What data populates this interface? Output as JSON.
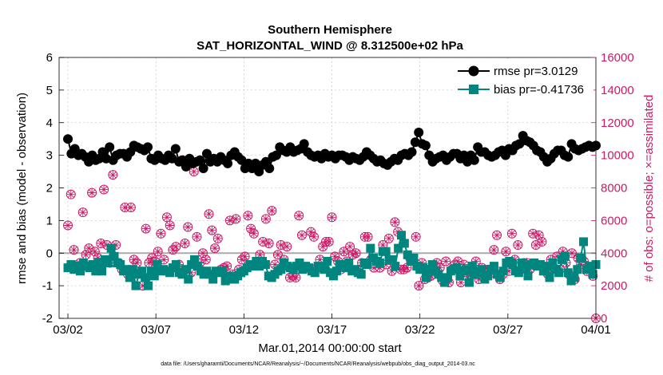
{
  "chart_data": {
    "type": "line",
    "title": "Southern Hemisphere",
    "subtitle": "SAT_HORIZONTAL_WIND @ 8.312500e+02 hPa",
    "xlabel": "Mar.01,2014 00:00:00 start",
    "ylabel": "rmse and bias (model - observation)",
    "y2label": "# of obs: o=possible; ×=assimilated",
    "footnote": "data file: /Users/gharamti/Documents/NCAR/Reanalysis/~/Documents/NCAR/Reanalysis/webpub/obs_diag_output_2014-03.nc",
    "xlim": [
      1.5,
      32
    ],
    "ylim": [
      -2,
      6
    ],
    "y2lim": [
      0,
      16000
    ],
    "xticks": [
      2,
      7,
      12,
      17,
      22,
      27,
      32
    ],
    "xtick_labels": [
      "03/02",
      "03/07",
      "03/12",
      "03/17",
      "03/22",
      "03/27",
      "04/01"
    ],
    "yticks": [
      -2,
      -1,
      0,
      1,
      2,
      3,
      4,
      5,
      6
    ],
    "yticks_right": [
      0,
      2000,
      4000,
      6000,
      8000,
      10000,
      12000,
      14000,
      16000
    ],
    "grid": true,
    "legend_position": "top-right",
    "series": [
      {
        "name": "rmse pr=3.0129",
        "axis": "left",
        "color": "#000000",
        "marker": "circle",
        "values": [
          3.5,
          3.05,
          3.2,
          3.0,
          3.05,
          2.95,
          2.8,
          3.0,
          2.85,
          2.9,
          3.1,
          2.9,
          3.25,
          2.85,
          3.0,
          3.05,
          3.05,
          2.95,
          3.1,
          3.3,
          3.25,
          3.2,
          3.15,
          3.25,
          2.9,
          2.85,
          3.0,
          2.9,
          2.85,
          3.0,
          2.9,
          3.2,
          2.8,
          2.85,
          2.65,
          2.9,
          2.75,
          2.8,
          2.85,
          2.6,
          3.05,
          2.8,
          2.9,
          2.8,
          2.95,
          2.85,
          2.75,
          3.0,
          3.1,
          2.95,
          2.85,
          2.6,
          2.75,
          2.6,
          2.75,
          2.5,
          2.7,
          2.8,
          2.6,
          2.95,
          3.0,
          3.25,
          3.15,
          3.1,
          3.25,
          3.1,
          3.15,
          3.2,
          3.35,
          3.1,
          3.0,
          2.95,
          3.0,
          2.9,
          3.05,
          2.95,
          3.0,
          2.9,
          3.0,
          3.0,
          2.95,
          2.85,
          2.95,
          2.9,
          2.85,
          2.95,
          3.1,
          3.0,
          2.9,
          2.8,
          2.85,
          2.75,
          2.7,
          2.8,
          2.9,
          2.85,
          3.0,
          3.05,
          3.0,
          3.1,
          3.4,
          3.7,
          3.35,
          3.3,
          3.0,
          2.8,
          2.9,
          2.95,
          3.0,
          2.85,
          2.95,
          3.05,
          3.05,
          2.9,
          3.0,
          2.8,
          3.0,
          2.85,
          3.25,
          3.1,
          3.1,
          3.0,
          2.95,
          3.0,
          3.1,
          3.15,
          3.0,
          3.2,
          3.15,
          3.3,
          3.35,
          3.6,
          3.45,
          3.4,
          3.3,
          3.15,
          3.1,
          2.95,
          2.8,
          2.9,
          3.05,
          3.15,
          3.15,
          3.0,
          2.95,
          3.35,
          3.2,
          3.15,
          3.2,
          3.25,
          3.3,
          3.25,
          3.3
        ]
      },
      {
        "name": "bias pr=-0.41736",
        "axis": "left",
        "color": "#00857F",
        "marker": "square",
        "values": [
          -0.45,
          -0.35,
          -0.5,
          -0.4,
          -0.55,
          -0.3,
          -0.4,
          -0.45,
          -0.35,
          -0.55,
          -0.3,
          -0.55,
          -0.2,
          -0.3,
          0.15,
          -0.1,
          -0.3,
          -0.35,
          -0.55,
          -0.5,
          -0.75,
          -0.5,
          -1.0,
          -0.65,
          -0.55,
          -0.75,
          -1.0,
          -0.55,
          -0.7,
          -0.35,
          -0.55,
          -0.5,
          -0.55,
          -0.6,
          -0.45,
          -0.35,
          -0.6,
          -0.65,
          -0.5,
          -0.8,
          -0.35,
          -0.2,
          -0.4,
          -0.55,
          -0.65,
          -0.55,
          -0.65,
          -0.8,
          -0.55,
          -0.6,
          -0.55,
          -0.85,
          -0.7,
          -0.8,
          -0.8,
          -0.7,
          -0.6,
          -0.55,
          -0.45,
          -0.35,
          -0.4,
          -0.25,
          -0.4,
          -0.25,
          -0.35,
          -0.7,
          -0.75,
          -0.65,
          -0.55,
          -0.5,
          -0.3,
          -0.4,
          -0.45,
          -0.5,
          -0.4,
          -0.3,
          -0.5,
          -0.4,
          -0.45,
          -0.55,
          -0.6,
          -0.4,
          -0.45,
          -0.5,
          -0.25,
          -0.6,
          -0.7,
          -0.55,
          -0.35,
          -0.35,
          -0.45,
          -0.3,
          -0.55,
          -0.5,
          -0.6,
          -0.65,
          -0.3,
          -0.35,
          0.15,
          -0.15,
          -0.25,
          -0.3,
          0.05,
          0.05,
          -0.2,
          -0.2,
          -0.4,
          0.15,
          0.55,
          0.3,
          -0.05,
          -0.25,
          -0.15,
          -0.4,
          -0.5,
          -0.45,
          -0.75,
          -0.5,
          -0.35,
          -0.55,
          -0.65,
          -0.75,
          -0.9,
          -0.75,
          -0.55,
          -0.5,
          -0.45,
          -0.7,
          -0.55,
          -0.5,
          -0.9,
          -0.4,
          -0.65,
          -0.6,
          -0.5,
          -0.8,
          -0.7,
          -0.5,
          -0.4,
          -0.65,
          -0.75,
          -0.55,
          -0.3,
          -0.25,
          -0.35,
          -0.55,
          -0.6,
          -0.3,
          -0.45,
          -0.7,
          -0.35,
          -0.3,
          -0.4,
          -0.35,
          -0.55,
          -0.4,
          -0.75,
          -0.3,
          -0.5,
          -0.6,
          -0.2,
          -0.1,
          -0.6,
          -0.85,
          -0.75,
          -0.5,
          -0.15,
          0.35,
          -0.5,
          -0.4,
          -0.65,
          -0.35
        ]
      },
      {
        "name": "possible",
        "axis": "right",
        "color": "#CC1A66",
        "marker": "circle-open",
        "values": [
          5700,
          7600,
          4200,
          3200,
          3400,
          6500,
          3900,
          4300,
          7700,
          4100,
          3700,
          4600,
          7900,
          4500,
          3400,
          8800,
          4500,
          3400,
          3000,
          6800,
          2700,
          6800,
          3600,
          3400,
          2800,
          2000,
          5500,
          3400,
          3700,
          3500,
          4100,
          5200,
          3600,
          6200,
          5700,
          4200,
          4400,
          3300,
          9700,
          4600,
          5600,
          2800,
          9000,
          5000,
          3400,
          4000,
          3600,
          6400,
          5400,
          4300,
          4900,
          3000,
          3100,
          3200,
          6000,
          2700,
          6100,
          3000,
          3600,
          3800,
          6300,
          5500,
          5200,
          3300,
          3900,
          4700,
          6100,
          4600,
          6600,
          3300,
          3900,
          4500,
          3600,
          4400,
          2500,
          2600,
          2500,
          6300,
          5100,
          3100,
          3100,
          5300,
          5000,
          3100,
          3600,
          4400,
          4700,
          4700,
          6200,
          3800,
          3500,
          3000,
          4100,
          3500,
          4400,
          3900,
          4000,
          3000,
          3400,
          5000,
          5000,
          3600,
          3100,
          3500,
          3100,
          4500,
          3300,
          4900,
          2900,
          5900,
          5300,
          3000,
          3000,
          3100,
          3700,
          3600,
          5000,
          2000,
          3400,
          2400,
          2500,
          2600,
          3000,
          3400,
          3100,
          2300,
          3500,
          2200,
          3000,
          3300,
          3500,
          2200,
          3300,
          2800,
          2700,
          3000,
          3500,
          2400,
          3100,
          2800,
          3000,
          2800,
          4200,
          5100,
          2400,
          2700,
          4100,
          2900,
          5200,
          3600,
          4500,
          3000,
          3400,
          3400,
          3000,
          5200,
          4500,
          5100,
          4700,
          2900,
          2700,
          3600,
          3100,
          3800,
          3000,
          4100,
          3400,
          2700,
          4000,
          2400,
          3700,
          3300,
          3500,
          2900,
          3000,
          2600,
          0
        ]
      },
      {
        "name": "assimilated",
        "axis": "right",
        "color": "#CC1A66",
        "marker": "x",
        "values": [
          5700,
          7600,
          4200,
          3200,
          3400,
          6500,
          3900,
          4300,
          7700,
          4100,
          3700,
          4600,
          7900,
          4500,
          3400,
          8800,
          4500,
          3400,
          3000,
          6800,
          2700,
          6800,
          3600,
          3400,
          2800,
          2000,
          5500,
          3400,
          3700,
          3500,
          4100,
          5200,
          3600,
          6200,
          5700,
          4200,
          4400,
          3300,
          9700,
          4600,
          5600,
          2800,
          9000,
          5000,
          3400,
          4000,
          3600,
          6400,
          5400,
          4300,
          4900,
          3000,
          3100,
          3200,
          6000,
          2700,
          6100,
          3000,
          3600,
          3800,
          6300,
          5500,
          5200,
          3300,
          3900,
          4700,
          6100,
          4600,
          6600,
          3300,
          3900,
          4500,
          3600,
          4400,
          2500,
          2600,
          2500,
          6300,
          5100,
          3100,
          3100,
          5300,
          5000,
          3100,
          3600,
          4400,
          4700,
          4700,
          6200,
          3800,
          3500,
          3000,
          4100,
          3500,
          4400,
          3900,
          4000,
          3000,
          3400,
          5000,
          5000,
          3600,
          3100,
          3500,
          3100,
          4500,
          3300,
          4900,
          2900,
          5900,
          5300,
          3000,
          3000,
          3100,
          3700,
          3600,
          5000,
          2000,
          3400,
          2400,
          2500,
          2600,
          3000,
          3400,
          3100,
          2300,
          3500,
          2200,
          3000,
          3300,
          3500,
          2200,
          3300,
          2800,
          2700,
          3000,
          3500,
          2400,
          3100,
          2800,
          3000,
          2800,
          4200,
          5100,
          2400,
          2700,
          4100,
          2900,
          5200,
          3600,
          4500,
          3000,
          3400,
          3400,
          3000,
          5200,
          4500,
          5100,
          4700,
          2900,
          2700,
          3600,
          3100,
          3800,
          3000,
          4100,
          3400,
          2700,
          4000,
          2400,
          3700,
          3300,
          3500,
          2900,
          3000,
          2600,
          0
        ]
      }
    ]
  },
  "colors": {
    "left_axis": "#000000",
    "right_axis": "#CC1A66",
    "grid": "#bbbbbb",
    "zero_line": "#aaaaaa"
  }
}
